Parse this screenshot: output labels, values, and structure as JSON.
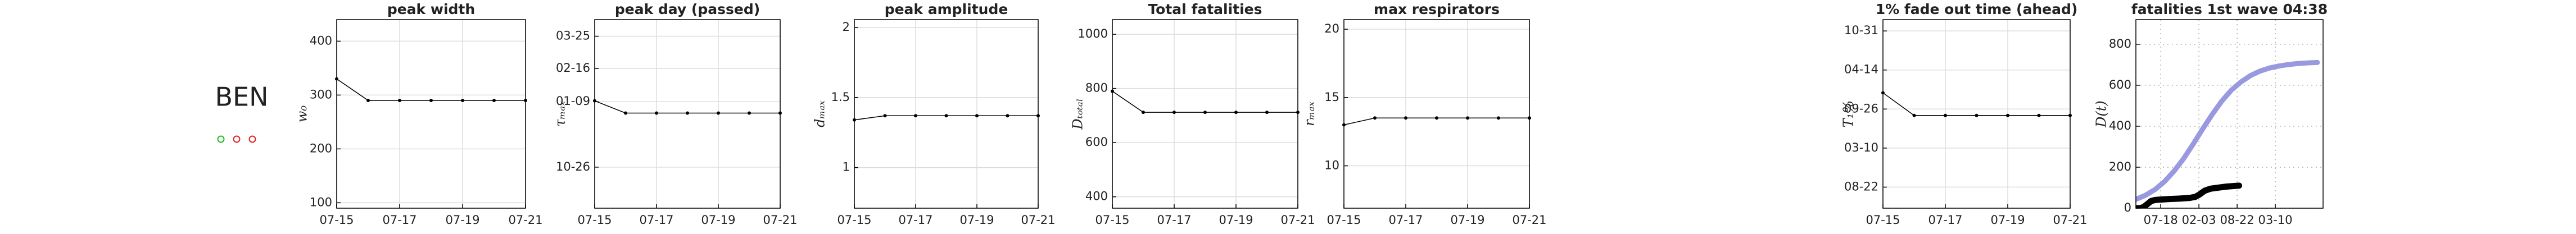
{
  "label": "BEN",
  "chart_data": [
    {
      "type": "line",
      "title": "peak width",
      "ylabel": "w₀",
      "color": "#000000",
      "grid": true,
      "categories": [
        "07-15",
        null,
        "07-17",
        null,
        "07-19",
        null,
        "07-21"
      ],
      "values": [
        330,
        290,
        290,
        290,
        290,
        290,
        290
      ],
      "ylim": [
        90,
        440
      ],
      "yticks": [
        100,
        200,
        300,
        400
      ]
    },
    {
      "type": "line",
      "title": "peak day (passed)",
      "ylabel": "τₘₐₓ",
      "color": "#000000",
      "grid": true,
      "categories": [
        "07-15",
        null,
        "07-17",
        null,
        "07-19",
        null,
        "07-21"
      ],
      "values": [
        76,
        62,
        62,
        62,
        62,
        62,
        62
      ],
      "ylim": [
        -47,
        169
      ],
      "yticks": [
        {
          "value": 0,
          "label": "10-26"
        },
        {
          "value": 75,
          "label": "01-09"
        },
        {
          "value": 113,
          "label": "02-16"
        },
        {
          "value": 150,
          "label": "03-25"
        }
      ]
    },
    {
      "type": "line",
      "title": "peak amplitude",
      "ylabel": "dₘₐₓ",
      "color": "#000000",
      "grid": true,
      "categories": [
        "07-15",
        null,
        "07-17",
        null,
        "07-19",
        null,
        "07-21"
      ],
      "values": [
        1.34,
        1.37,
        1.37,
        1.37,
        1.37,
        1.37,
        1.37
      ],
      "ylim": [
        0.71,
        2.056
      ],
      "yticks": [
        1,
        1.5,
        2
      ]
    },
    {
      "type": "line",
      "title": "Total fatalities",
      "ylabel": "Dₜₒₜₐₗ",
      "color": "#000000",
      "grid": true,
      "categories": [
        "07-15",
        null,
        "07-17",
        null,
        "07-19",
        null,
        "07-21"
      ],
      "values": [
        790,
        712,
        712,
        712,
        712,
        712,
        712
      ],
      "ylim": [
        358,
        1054
      ],
      "yticks": [
        400,
        600,
        800,
        1000
      ]
    },
    {
      "type": "line",
      "title": "max respirators",
      "ylabel": "rₘₐₓ",
      "color": "#000000",
      "grid": true,
      "categories": [
        "07-15",
        null,
        "07-17",
        null,
        "07-19",
        null,
        "07-21"
      ],
      "values": [
        13,
        13.5,
        13.5,
        13.5,
        13.5,
        13.5,
        13.5
      ],
      "ylim": [
        6.9,
        20.7
      ],
      "yticks": [
        10,
        15,
        20
      ]
    },
    {
      "type": "line",
      "title": "1% fade out time (ahead)",
      "ylabel": "T₁%",
      "color": "#000000",
      "grid": true,
      "categories": [
        "07-15",
        null,
        "07-17",
        null,
        "07-19",
        null,
        "07-21"
      ],
      "values": [
        483,
        367,
        367,
        367,
        367,
        367,
        367
      ],
      "ylim": [
        -108,
        858
      ],
      "yticks": [
        {
          "value": 0,
          "label": "08-22"
        },
        {
          "value": 200,
          "label": "03-10"
        },
        {
          "value": 400,
          "label": "09-26"
        },
        {
          "value": 600,
          "label": "04-14"
        },
        {
          "value": 800,
          "label": "10-31"
        }
      ]
    },
    {
      "type": "xyline",
      "title": "fatalities 1st wave 04:38",
      "ylabel": "D(t)",
      "grid": true,
      "grid_style": "dotted",
      "xlim": [
        -130,
        850
      ],
      "xticks": [
        {
          "value": 0,
          "label": "07-18"
        },
        {
          "value": 200,
          "label": "02-03"
        },
        {
          "value": 400,
          "label": "08-22"
        },
        {
          "value": 600,
          "label": "03-10"
        }
      ],
      "ylim": [
        0,
        920
      ],
      "yticks": [
        0,
        200,
        400,
        600,
        800
      ],
      "series": [
        {
          "color": "#9999e0",
          "width": 9,
          "x": [
            -130,
            -80,
            -30,
            20,
            70,
            120,
            170,
            220,
            270,
            320,
            370,
            420,
            470,
            520,
            570,
            620,
            670,
            720,
            770,
            820
          ],
          "values": [
            43,
            63,
            91,
            130,
            181,
            242,
            313,
            387,
            458,
            523,
            576,
            616,
            647,
            669,
            684,
            694,
            701,
            706,
            709,
            711
          ]
        },
        {
          "color": "#000000",
          "width": 11,
          "x": [
            -130,
            -110,
            -90,
            -70,
            -50,
            -30,
            0,
            50,
            100,
            150,
            180,
            200,
            230,
            260,
            300,
            340,
            380,
            410
          ],
          "values": [
            0,
            0,
            5,
            20,
            35,
            40,
            42,
            45,
            47,
            50,
            55,
            65,
            85,
            95,
            100,
            105,
            108,
            110
          ]
        }
      ]
    }
  ]
}
